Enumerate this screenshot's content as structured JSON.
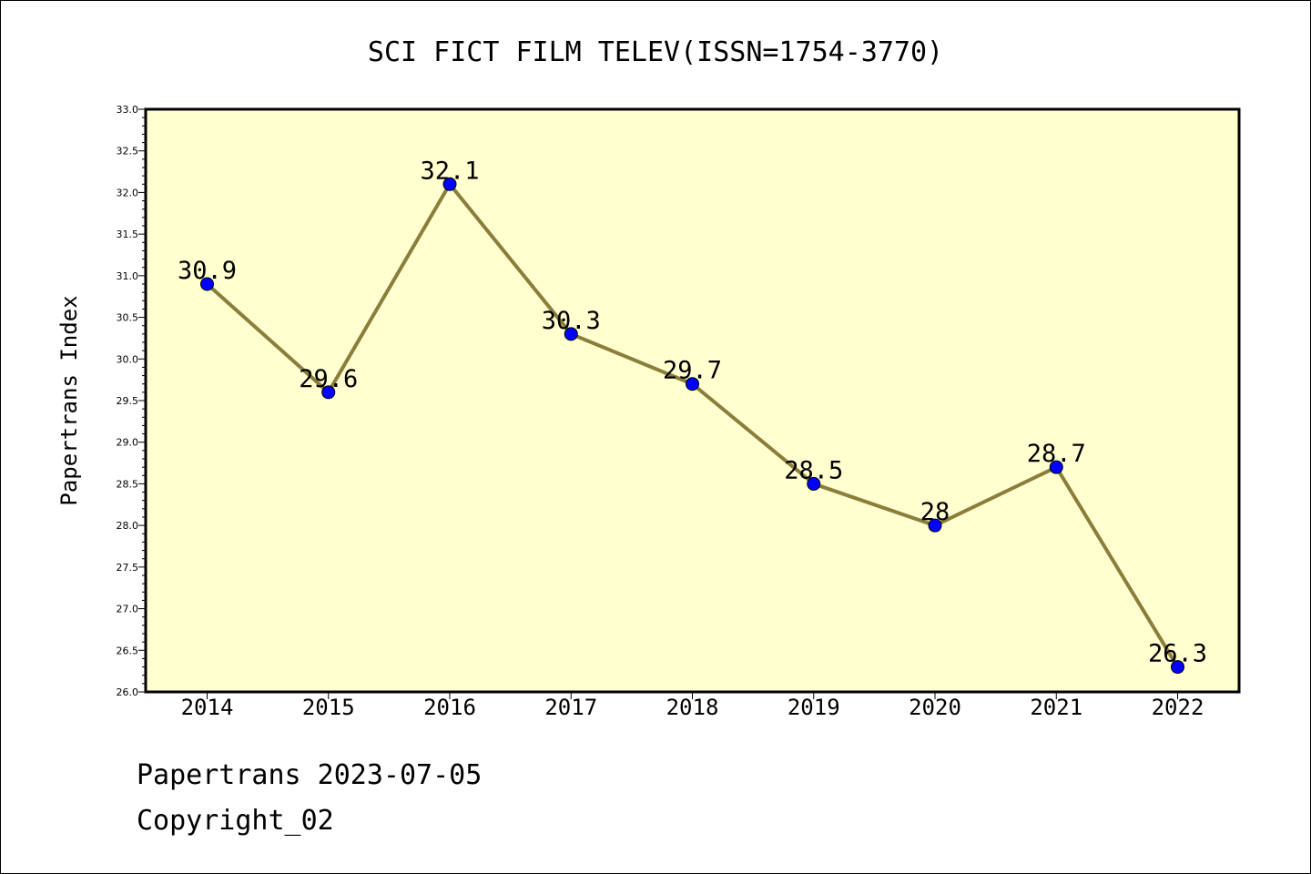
{
  "chart_data": {
    "type": "line",
    "title": "SCI FICT FILM TELEV(ISSN=1754-3770)",
    "xlabel": "",
    "ylabel": "Papertrans Index",
    "categories": [
      "2014",
      "2015",
      "2016",
      "2017",
      "2018",
      "2019",
      "2020",
      "2021",
      "2022"
    ],
    "values": [
      30.9,
      29.6,
      32.1,
      30.3,
      29.7,
      28.5,
      28,
      28.7,
      26.3
    ],
    "data_labels": [
      "30.9",
      "29.6",
      "32.1",
      "30.3",
      "29.7",
      "28.5",
      "28",
      "28.7",
      "26.3"
    ],
    "ylim": [
      26.0,
      33.0
    ],
    "yticks": [
      "26.0",
      "26.5",
      "27.0",
      "27.5",
      "28.0",
      "28.5",
      "29.0",
      "29.5",
      "30.0",
      "30.5",
      "31.0",
      "31.5",
      "32.0",
      "32.5",
      "33.0"
    ],
    "grid": false,
    "legend": "none",
    "colors": {
      "plot_background": "#ffffd0",
      "line": "#8b7d3a",
      "marker": "#0000ff"
    }
  },
  "footer": {
    "date_text": "Papertrans 2023-07-05",
    "copyright_text": "Copyright_02"
  }
}
